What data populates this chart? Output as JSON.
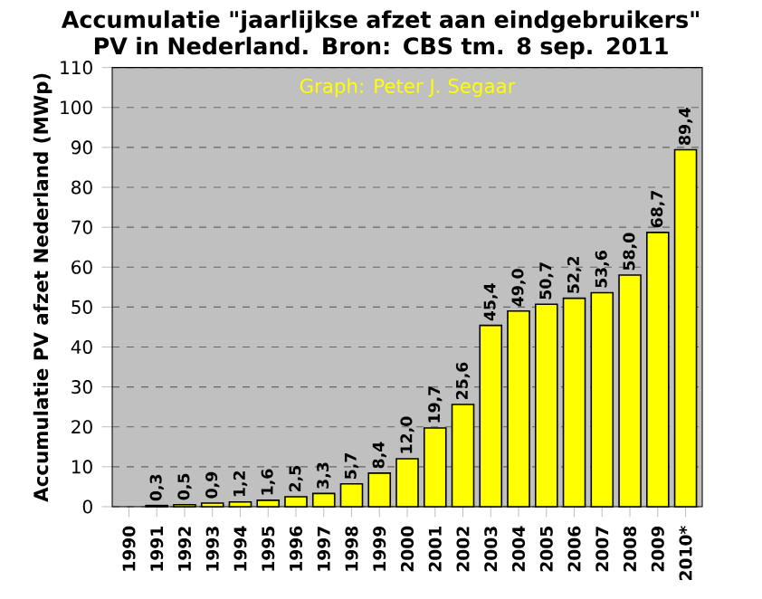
{
  "chart_data": {
    "type": "bar",
    "title": "Accumulatie \"jaarlijkse afzet aan eindgebruikers\" PV in Nederland. Bron: CBS tm. 8 sep. 2011",
    "ylabel": "Accumulatie PV afzet Nederland (MWp)",
    "annotations": [
      "Graph: Peter J. Segaar"
    ],
    "categories": [
      "1990",
      "1991",
      "1992",
      "1993",
      "1994",
      "1995",
      "1996",
      "1997",
      "1998",
      "1999",
      "2000",
      "2001",
      "2002",
      "2003",
      "2004",
      "2005",
      "2006",
      "2007",
      "2008",
      "2009",
      "2010*"
    ],
    "values": [
      null,
      0.3,
      0.5,
      0.9,
      1.2,
      1.6,
      2.5,
      3.3,
      5.7,
      8.4,
      12.0,
      19.7,
      25.6,
      45.4,
      49.0,
      50.7,
      52.2,
      53.6,
      58.0,
      68.7,
      89.4
    ],
    "value_labels": [
      null,
      "0,3",
      "0,5",
      "0,9",
      "1,2",
      "1,6",
      "2,5",
      "3,3",
      "5,7",
      "8,4",
      "12,0",
      "19,7",
      "25,6",
      "45,4",
      "49,0",
      "50,7",
      "52,2",
      "53,6",
      "58,0",
      "68,7",
      "89,4"
    ],
    "color": "#ffff00",
    "ylim": [
      0,
      110
    ],
    "yticks": [
      0,
      10,
      20,
      30,
      40,
      50,
      60,
      70,
      80,
      90,
      100,
      110
    ],
    "grid": "y"
  }
}
